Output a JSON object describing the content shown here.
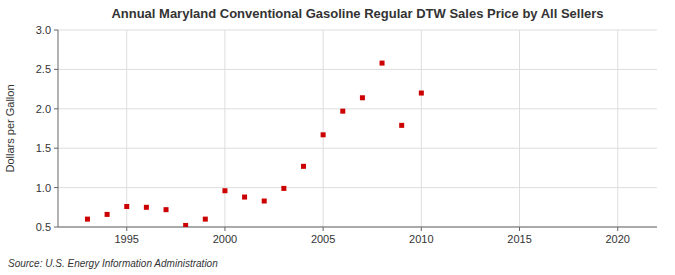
{
  "chart_data": {
    "type": "scatter",
    "title": "Annual Maryland Conventional Gasoline Regular DTW Sales Price by All Sellers",
    "y_label": "Dollars per Gallon",
    "source": "Source: U.S. Energy Information Administration",
    "x": [
      1993,
      1994,
      1995,
      1996,
      1997,
      1998,
      1999,
      2000,
      2001,
      2002,
      2003,
      2004,
      2005,
      2006,
      2007,
      2008,
      2009,
      2010
    ],
    "values": [
      0.6,
      0.66,
      0.76,
      0.75,
      0.72,
      0.52,
      0.6,
      0.96,
      0.88,
      0.83,
      0.99,
      1.27,
      1.67,
      1.97,
      2.14,
      2.58,
      1.79,
      2.2
    ],
    "color": "#cc0000",
    "marker": "square",
    "xlim": [
      1991.5,
      2022
    ],
    "ylim": [
      0.5,
      3.0
    ],
    "xticks": [
      1995,
      2000,
      2005,
      2010,
      2015,
      2020
    ],
    "yticks": [
      0.5,
      {
        "value": 1.0,
        "label": "1.0"
      },
      1.5,
      {
        "value": 2.0,
        "label": "2.0"
      },
      2.5,
      {
        "value": 3.0,
        "label": "3.0"
      }
    ],
    "grid": true
  }
}
